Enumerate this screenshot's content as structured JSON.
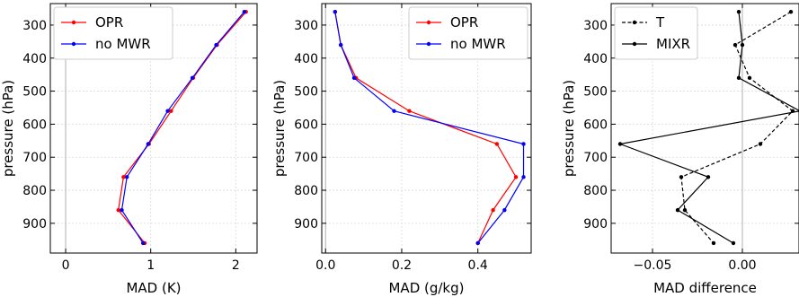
{
  "chart_data": [
    {
      "type": "line",
      "xlabel": "MAD (K)",
      "ylabel": "pressure (hPa)",
      "xlim": [
        -0.18,
        2.25
      ],
      "ylim": [
        990,
        235
      ],
      "xticks": [
        0,
        1,
        2
      ],
      "xtick_labels": [
        "0",
        "1",
        "2"
      ],
      "yticks": [
        300,
        400,
        500,
        600,
        700,
        800,
        900
      ],
      "ytick_labels": [
        "300",
        "400",
        "500",
        "600",
        "700",
        "800",
        "900"
      ],
      "zero_line": true,
      "grid": true,
      "legend_position": "top-left",
      "series": [
        {
          "name": "OPR",
          "color": "#ff0000",
          "style": "solid",
          "x": [
            2.12,
            1.78,
            1.5,
            1.24,
            0.98,
            0.68,
            0.62,
            0.93
          ],
          "y": [
            260,
            360,
            460,
            560,
            660,
            760,
            860,
            960
          ]
        },
        {
          "name": "no MWR",
          "color": "#0000ff",
          "style": "solid",
          "x": [
            2.1,
            1.77,
            1.49,
            1.2,
            0.97,
            0.72,
            0.66,
            0.91
          ],
          "y": [
            260,
            360,
            460,
            560,
            660,
            760,
            860,
            960
          ]
        }
      ]
    },
    {
      "type": "line",
      "xlabel": "MAD (g/kg)",
      "ylabel": "pressure (hPa)",
      "xlim": [
        -0.01,
        0.54
      ],
      "ylim": [
        990,
        235
      ],
      "xticks": [
        0.0,
        0.2,
        0.4
      ],
      "xtick_labels": [
        "0.0",
        "0.2",
        "0.4"
      ],
      "yticks": [
        300,
        400,
        500,
        600,
        700,
        800,
        900
      ],
      "ytick_labels": [
        "300",
        "400",
        "500",
        "600",
        "700",
        "800",
        "900"
      ],
      "zero_line": true,
      "grid": true,
      "legend_position": "top-right",
      "series": [
        {
          "name": "OPR",
          "color": "#ff0000",
          "style": "solid",
          "x": [
            0.025,
            0.04,
            0.08,
            0.22,
            0.45,
            0.5,
            0.44,
            0.4
          ],
          "y": [
            260,
            360,
            460,
            560,
            660,
            760,
            860,
            960
          ]
        },
        {
          "name": "no MWR",
          "color": "#0000ff",
          "style": "solid",
          "x": [
            0.025,
            0.04,
            0.075,
            0.18,
            0.52,
            0.52,
            0.47,
            0.4
          ],
          "y": [
            260,
            360,
            460,
            560,
            660,
            760,
            860,
            960
          ]
        }
      ]
    },
    {
      "type": "line",
      "xlabel": "MAD difference",
      "ylabel": "pressure (hPa)",
      "xlim": [
        -0.073,
        0.0315
      ],
      "ylim": [
        990,
        235
      ],
      "xticks": [
        -0.05,
        0.0
      ],
      "xtick_labels": [
        "−0.05",
        "0.00"
      ],
      "yticks": [
        300,
        400,
        500,
        600,
        700,
        800,
        900
      ],
      "ytick_labels": [
        "300",
        "400",
        "500",
        "600",
        "700",
        "800",
        "900"
      ],
      "zero_line": true,
      "grid": true,
      "legend_position": "top-left",
      "series": [
        {
          "name": "T",
          "color": "#000000",
          "style": "dashed",
          "x": [
            0.027,
            -0.004,
            0.004,
            0.028,
            0.01,
            -0.034,
            -0.032,
            -0.016
          ],
          "y": [
            260,
            360,
            460,
            560,
            660,
            760,
            860,
            960
          ]
        },
        {
          "name": "MIXR",
          "color": "#000000",
          "style": "solid",
          "x": [
            -0.002,
            0.0,
            -0.002,
            0.032,
            -0.068,
            -0.019,
            -0.036,
            -0.005
          ],
          "y": [
            260,
            360,
            460,
            560,
            660,
            760,
            860,
            960
          ]
        }
      ]
    }
  ]
}
